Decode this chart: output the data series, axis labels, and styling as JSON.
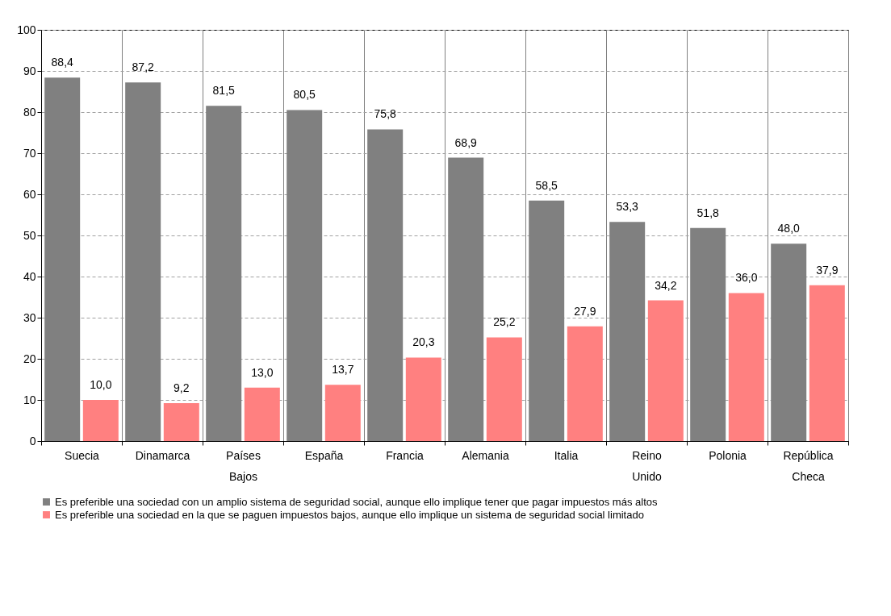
{
  "chart_data": {
    "type": "bar",
    "categories": [
      "Suecia",
      "Dinamarca",
      "Países Bajos",
      "España",
      "Francia",
      "Alemania",
      "Italia",
      "Reino Unido",
      "Polonia",
      "República Checa"
    ],
    "series": [
      {
        "name": "Es preferible una sociedad con un amplio sistema de seguridad social, aunque ello implique tener que pagar impuestos más altos",
        "color": "#808080",
        "values": [
          88.4,
          87.2,
          81.5,
          80.5,
          75.8,
          68.9,
          58.5,
          53.3,
          51.8,
          48.0
        ],
        "value_labels": [
          "88,4",
          "87,2",
          "81,5",
          "80,5",
          "75,8",
          "68,9",
          "58,5",
          "53,3",
          "51,8",
          "48,0"
        ]
      },
      {
        "name": "Es preferible una sociedad en la que se paguen impuestos bajos, aunque ello implique un sistema de seguridad social limitado",
        "color": "#ff8080",
        "values": [
          10.0,
          9.2,
          13.0,
          13.7,
          20.3,
          25.2,
          27.9,
          34.2,
          36.0,
          37.9
        ],
        "value_labels": [
          "10,0",
          "9,2",
          "13,0",
          "13,7",
          "20,3",
          "25,2",
          "27,9",
          "34,2",
          "36,0",
          "37,9"
        ]
      }
    ],
    "ylim": [
      0,
      100
    ],
    "yticks": [
      0,
      10,
      20,
      30,
      40,
      50,
      60,
      70,
      80,
      90,
      100
    ],
    "grid": "y",
    "legend": "bottom"
  }
}
